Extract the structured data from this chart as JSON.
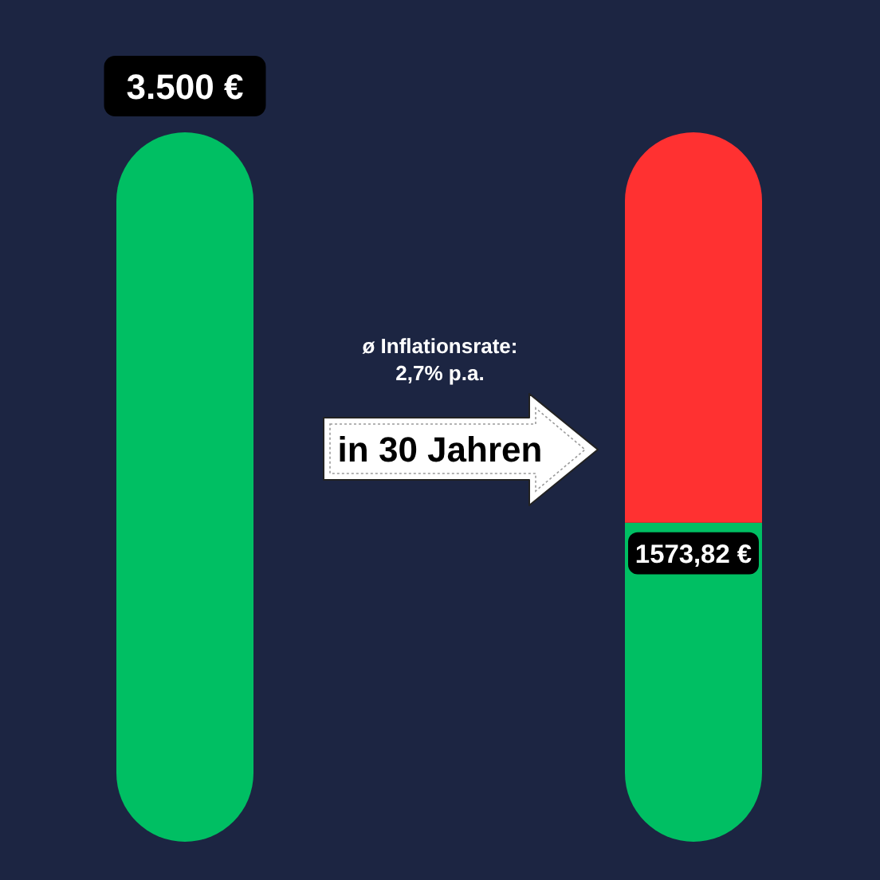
{
  "chart_data": {
    "type": "bar",
    "stacked": true,
    "categories": [
      null,
      null
    ],
    "series": [
      {
        "color": "#00bf63",
        "values": [
          3500,
          1573.82
        ],
        "value_labels": [
          "3.500 €",
          "1573,82 €"
        ]
      },
      {
        "color": "#ff3131",
        "values": [
          null,
          1926
        ]
      }
    ],
    "annotations": [
      "ø Inflationsrate:",
      "2,7% p.a.",
      "in 30 Jahren"
    ]
  }
}
